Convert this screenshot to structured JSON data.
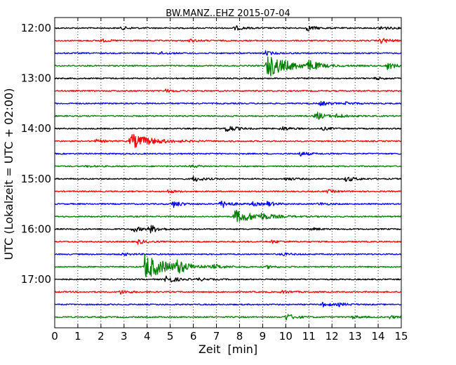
{
  "chart_data": {
    "type": "line",
    "title": "BW.MANZ..EHZ 2015-07-04",
    "xlabel": "Zeit  [min]",
    "ylabel": "UTC (Lokalzeit = UTC + 02:00)",
    "xlim": [
      0,
      15
    ],
    "x_ticks": [
      "0",
      "1",
      "2",
      "3",
      "4",
      "5",
      "6",
      "7",
      "8",
      "9",
      "10",
      "11",
      "12",
      "13",
      "14",
      "15"
    ],
    "y_ticks": [
      "12:00",
      "13:00",
      "14:00",
      "15:00",
      "16:00",
      "17:00"
    ],
    "grid": true,
    "trace_interval_minutes": 15,
    "trace_colors": [
      "#000000",
      "#ff0000",
      "#0000ff",
      "#008000"
    ],
    "traces": [
      {
        "start": "12:00",
        "events": [
          {
            "t": 2.9,
            "amp": 2
          },
          {
            "t": 7.8,
            "amp": 3
          },
          {
            "t": 10.9,
            "amp": 4
          },
          {
            "t": 14.1,
            "amp": 3
          }
        ]
      },
      {
        "start": "12:15",
        "events": [
          {
            "t": 2.0,
            "amp": 2
          },
          {
            "t": 5.8,
            "amp": 2
          },
          {
            "t": 14.1,
            "amp": 4
          }
        ]
      },
      {
        "start": "12:30",
        "events": [
          {
            "t": 4.5,
            "amp": 2
          },
          {
            "t": 9.1,
            "amp": 3
          }
        ]
      },
      {
        "start": "12:45",
        "events": [
          {
            "t": 9.2,
            "amp": 16
          },
          {
            "t": 11.0,
            "amp": 7
          },
          {
            "t": 14.4,
            "amp": 5
          }
        ]
      },
      {
        "start": "13:00",
        "events": [
          {
            "t": 13.9,
            "amp": 2
          }
        ]
      },
      {
        "start": "13:15",
        "events": [
          {
            "t": 4.8,
            "amp": 2
          }
        ]
      },
      {
        "start": "13:30",
        "events": [
          {
            "t": 11.5,
            "amp": 3
          },
          {
            "t": 12.6,
            "amp": 2
          }
        ]
      },
      {
        "start": "13:45",
        "events": [
          {
            "t": 11.3,
            "amp": 6
          },
          {
            "t": 12.2,
            "amp": 3
          }
        ]
      },
      {
        "start": "14:00",
        "events": [
          {
            "t": 7.4,
            "amp": 6
          },
          {
            "t": 9.8,
            "amp": 3
          },
          {
            "t": 11.6,
            "amp": 2
          }
        ]
      },
      {
        "start": "14:15",
        "events": [
          {
            "t": 3.3,
            "amp": 10
          },
          {
            "t": 1.8,
            "amp": 2
          }
        ]
      },
      {
        "start": "14:30",
        "events": [
          {
            "t": 10.6,
            "amp": 3
          }
        ]
      },
      {
        "start": "14:45",
        "events": [
          {
            "t": 1.4,
            "amp": 1
          },
          {
            "t": 5.9,
            "amp": 2
          }
        ]
      },
      {
        "start": "15:00",
        "events": [
          {
            "t": 6.0,
            "amp": 4
          },
          {
            "t": 10.0,
            "amp": 2
          },
          {
            "t": 12.6,
            "amp": 4
          }
        ]
      },
      {
        "start": "15:15",
        "events": [
          {
            "t": 4.9,
            "amp": 2
          },
          {
            "t": 11.8,
            "amp": 2
          }
        ]
      },
      {
        "start": "15:30",
        "events": [
          {
            "t": 5.1,
            "amp": 5
          },
          {
            "t": 7.2,
            "amp": 6
          },
          {
            "t": 8.5,
            "amp": 3
          },
          {
            "t": 9.2,
            "amp": 3
          },
          {
            "t": 11.4,
            "amp": 2
          }
        ]
      },
      {
        "start": "15:45",
        "events": [
          {
            "t": 7.8,
            "amp": 9
          },
          {
            "t": 8.9,
            "amp": 3
          }
        ]
      },
      {
        "start": "16:00",
        "events": [
          {
            "t": 3.4,
            "amp": 4
          },
          {
            "t": 4.1,
            "amp": 6
          },
          {
            "t": 11.1,
            "amp": 2
          }
        ]
      },
      {
        "start": "16:15",
        "events": [
          {
            "t": 3.6,
            "amp": 3
          },
          {
            "t": 9.4,
            "amp": 2
          }
        ]
      },
      {
        "start": "16:30",
        "events": [
          {
            "t": 2.9,
            "amp": 2
          },
          {
            "t": 9.8,
            "amp": 2
          }
        ]
      },
      {
        "start": "16:45",
        "events": [
          {
            "t": 3.9,
            "amp": 18
          },
          {
            "t": 5.3,
            "amp": 8
          },
          {
            "t": 6.9,
            "amp": 3
          },
          {
            "t": 9.2,
            "amp": 2
          }
        ]
      },
      {
        "start": "17:00",
        "events": [
          {
            "t": 4.8,
            "amp": 7
          },
          {
            "t": 6.2,
            "amp": 2
          }
        ]
      },
      {
        "start": "17:15",
        "events": [
          {
            "t": 2.8,
            "amp": 3
          },
          {
            "t": 9.8,
            "amp": 2
          }
        ]
      },
      {
        "start": "17:30",
        "events": [
          {
            "t": 11.6,
            "amp": 3
          },
          {
            "t": 12.3,
            "amp": 2
          }
        ]
      },
      {
        "start": "17:45",
        "events": [
          {
            "t": 10.0,
            "amp": 5
          },
          {
            "t": 12.9,
            "amp": 2
          },
          {
            "t": 14.5,
            "amp": 2
          }
        ]
      }
    ]
  }
}
